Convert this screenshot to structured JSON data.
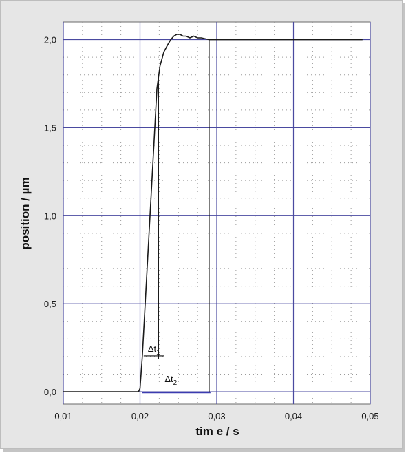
{
  "chart_data": {
    "type": "line",
    "xlabel": "tim e  / s",
    "ylabel": "position  / µm",
    "xlim": [
      0.01,
      0.05
    ],
    "ylim": [
      -0.07,
      2.1
    ],
    "x_ticks": [
      0.01,
      0.02,
      0.03,
      0.04,
      0.05
    ],
    "x_tick_labels": [
      "0,01",
      "0,02",
      "0,03",
      "0,04",
      "0,05"
    ],
    "y_ticks": [
      0.0,
      0.5,
      1.0,
      1.5,
      2.0
    ],
    "y_tick_labels": [
      "0,0",
      "0,5",
      "1,0",
      "1,5",
      "2,0"
    ],
    "grid": true,
    "minor_grid": "dotted",
    "series": [
      {
        "x": [
          0.01,
          0.019,
          0.0198,
          0.02,
          0.0203,
          0.0208,
          0.0213,
          0.0218,
          0.0222,
          0.0226,
          0.0231,
          0.0236,
          0.024,
          0.0244,
          0.0248,
          0.0252,
          0.0256,
          0.026,
          0.0265,
          0.027,
          0.0275,
          0.028,
          0.029,
          0.03,
          0.032,
          0.035,
          0.038,
          0.04,
          0.043,
          0.046,
          0.049
        ],
        "y": [
          0.0,
          0.0,
          0.0,
          0.02,
          0.2,
          0.6,
          1.0,
          1.4,
          1.72,
          1.85,
          1.93,
          1.97,
          2.0,
          2.02,
          2.03,
          2.03,
          2.02,
          2.02,
          2.01,
          2.02,
          2.01,
          2.01,
          2.0,
          2.0,
          2.0,
          2.0,
          2.0,
          2.0,
          2.0,
          2.0,
          2.0
        ]
      }
    ],
    "annotations": [
      {
        "label": "Δt",
        "subscript": "1",
        "x_start": 0.0203,
        "x_end": 0.0224,
        "y": 0.2
      },
      {
        "label": "Δt",
        "subscript": "2",
        "x_start": 0.0203,
        "x_end": 0.029,
        "y": 0.0
      }
    ],
    "colors": {
      "grid": "#4a4aa0",
      "minor_grid": "#9a9a9a",
      "line": "#1a1a1a",
      "annotation": "#111111",
      "delta2_baseline": "#3b3bb0",
      "plot_bg": "#ffffff"
    }
  }
}
